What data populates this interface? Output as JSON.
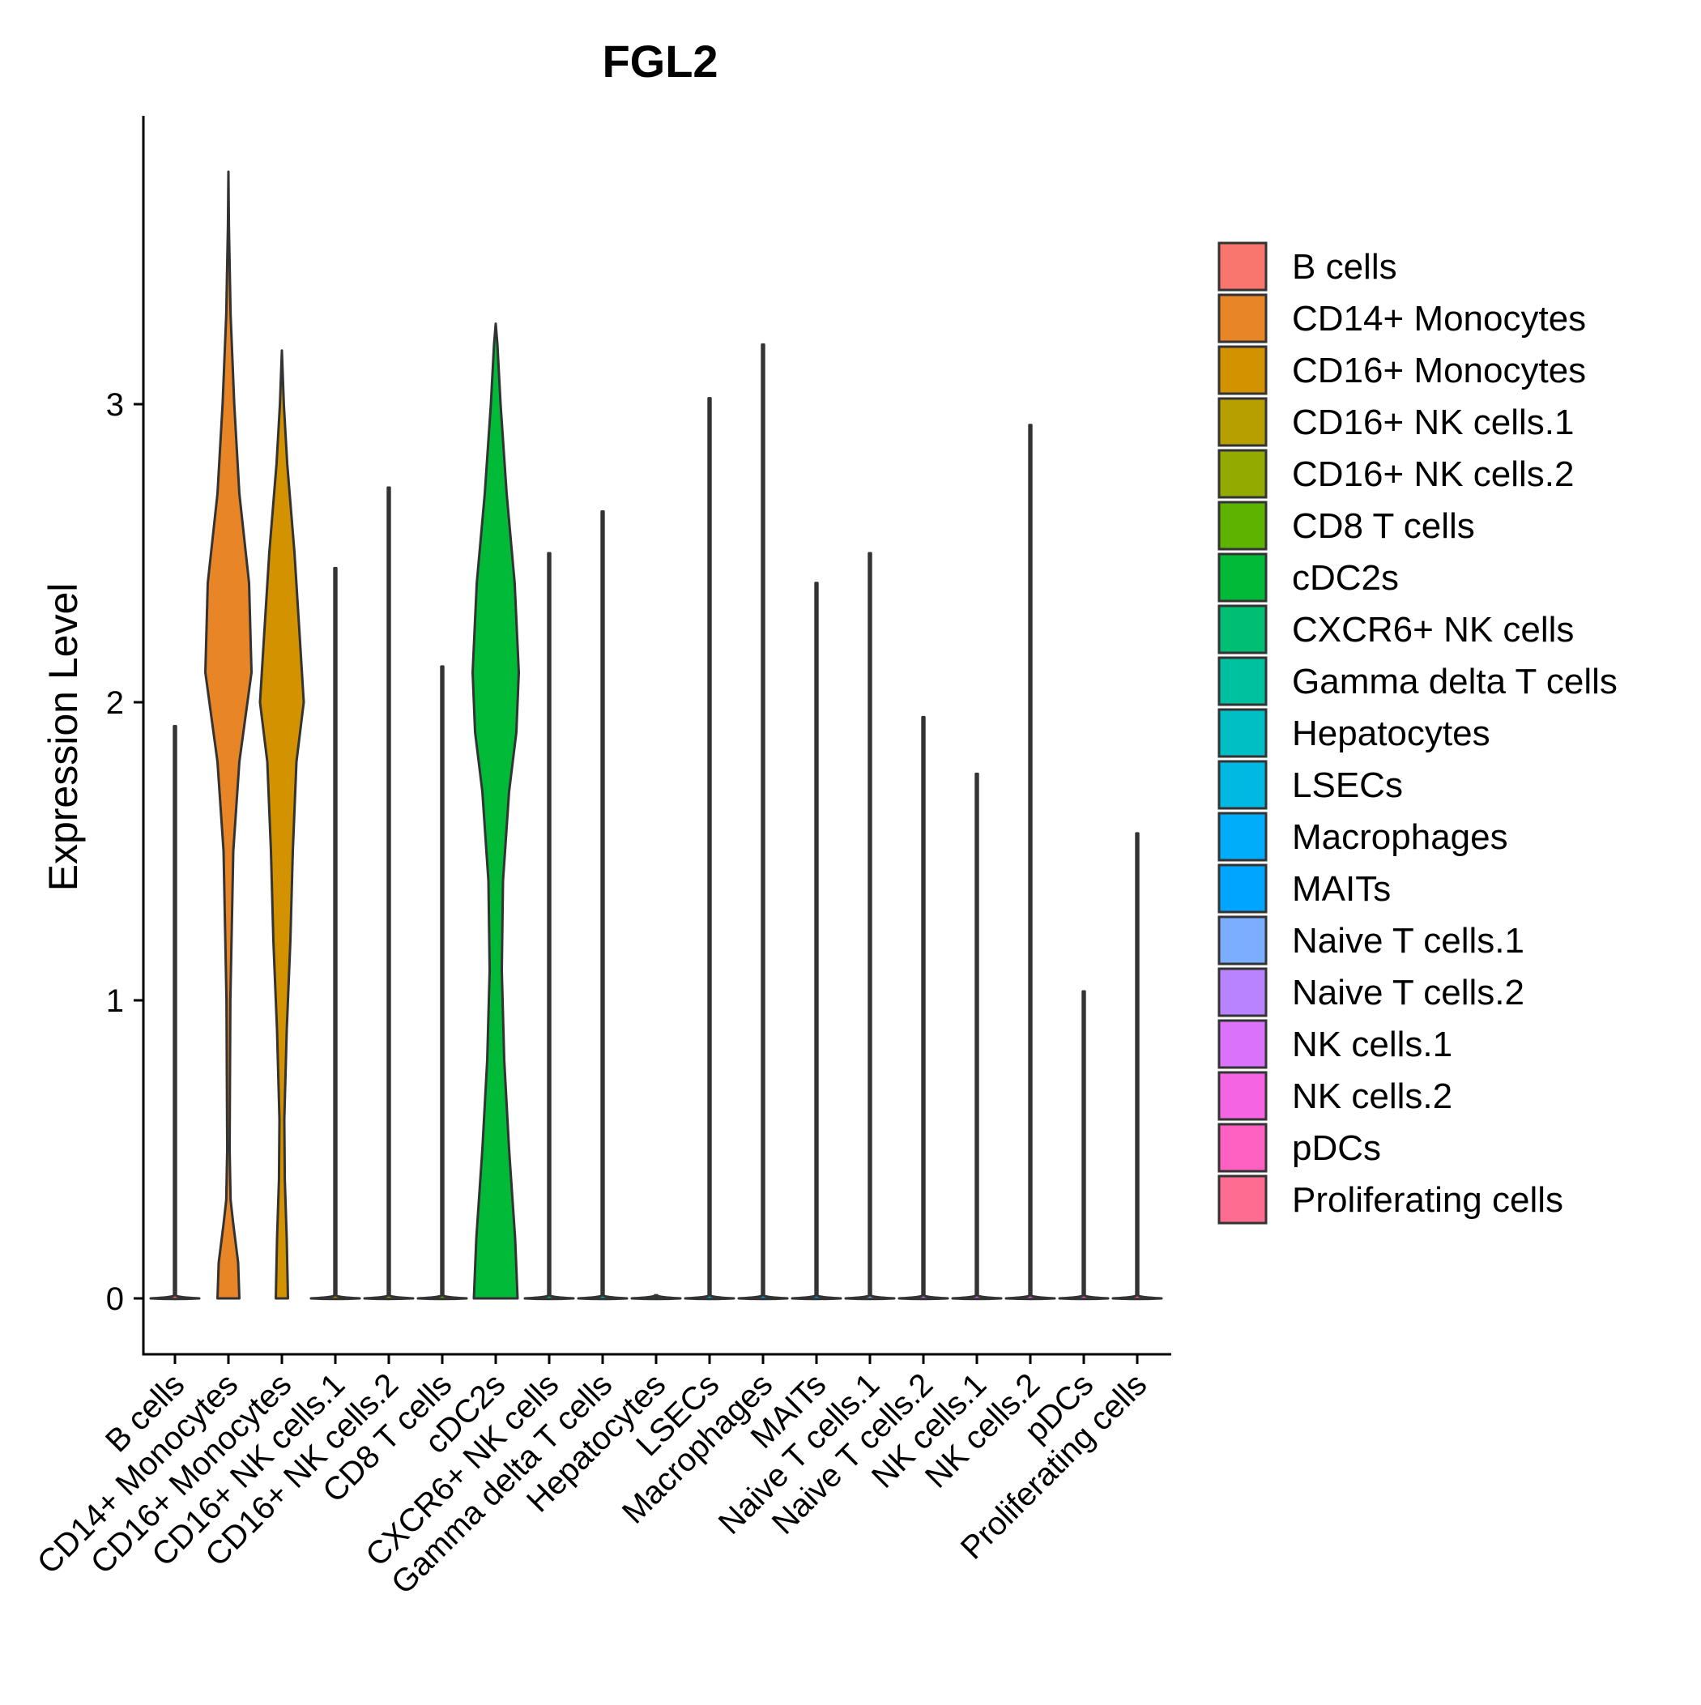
{
  "chart_data": {
    "type": "violin",
    "title": "FGL2",
    "xlabel": "",
    "ylabel": "Expression Level",
    "ylim": [
      -0.18,
      3.95
    ],
    "yticks": [
      0,
      1,
      2,
      3
    ],
    "categories": [
      "B cells",
      "CD14+ Monocytes",
      "CD16+ Monocytes",
      "CD16+ NK cells.1",
      "CD16+ NK cells.2",
      "CD8 T cells",
      "cDC2s",
      "CXCR6+ NK cells",
      "Gamma delta T cells",
      "Hepatocytes",
      "LSECs",
      "Macrophages",
      "MAITs",
      "Naive T cells.1",
      "Naive T cells.2",
      "NK cells.1",
      "NK cells.2",
      "pDCs",
      "Proliferating cells"
    ],
    "colors": [
      "#F8766D",
      "#E88526",
      "#D39200",
      "#B79F00",
      "#93AA00",
      "#5EB300",
      "#00BA38",
      "#00BF74",
      "#00C19F",
      "#00BFC4",
      "#00B9E3",
      "#00ADFA",
      "#00A5FF",
      "#7CAEFF",
      "#B983FF",
      "#DB72FB",
      "#F564E3",
      "#FF61C3",
      "#FF6C91"
    ],
    "max_values": [
      1.92,
      3.78,
      3.18,
      2.45,
      2.72,
      2.12,
      3.28,
      2.5,
      2.64,
      0.0,
      3.02,
      3.2,
      2.4,
      2.5,
      1.95,
      1.76,
      2.93,
      1.03,
      1.56
    ],
    "violins": [
      {
        "category": "CD14+ Monocytes",
        "profile": [
          [
            0.0,
            0.45
          ],
          [
            0.12,
            0.4
          ],
          [
            0.25,
            0.2
          ],
          [
            0.33,
            0.09
          ],
          [
            0.5,
            0.05
          ],
          [
            1.0,
            0.08
          ],
          [
            1.5,
            0.2
          ],
          [
            1.8,
            0.45
          ],
          [
            2.1,
            0.95
          ],
          [
            2.4,
            0.85
          ],
          [
            2.7,
            0.45
          ],
          [
            3.0,
            0.24
          ],
          [
            3.3,
            0.09
          ],
          [
            3.6,
            0.02
          ],
          [
            3.78,
            0.0
          ]
        ]
      },
      {
        "category": "CD16+ Monocytes",
        "profile": [
          [
            0.0,
            0.25
          ],
          [
            0.2,
            0.2
          ],
          [
            0.4,
            0.12
          ],
          [
            0.6,
            0.1
          ],
          [
            0.9,
            0.2
          ],
          [
            1.2,
            0.35
          ],
          [
            1.5,
            0.45
          ],
          [
            1.8,
            0.6
          ],
          [
            2.0,
            0.9
          ],
          [
            2.2,
            0.75
          ],
          [
            2.5,
            0.52
          ],
          [
            2.8,
            0.22
          ],
          [
            3.0,
            0.08
          ],
          [
            3.18,
            0.0
          ]
        ]
      },
      {
        "category": "cDC2s",
        "profile": [
          [
            0.0,
            0.9
          ],
          [
            0.2,
            0.8
          ],
          [
            0.5,
            0.55
          ],
          [
            0.8,
            0.35
          ],
          [
            1.1,
            0.25
          ],
          [
            1.4,
            0.3
          ],
          [
            1.7,
            0.55
          ],
          [
            1.9,
            0.85
          ],
          [
            2.1,
            0.95
          ],
          [
            2.4,
            0.78
          ],
          [
            2.7,
            0.45
          ],
          [
            3.0,
            0.2
          ],
          [
            3.2,
            0.07
          ],
          [
            3.27,
            0.0
          ]
        ]
      }
    ]
  }
}
